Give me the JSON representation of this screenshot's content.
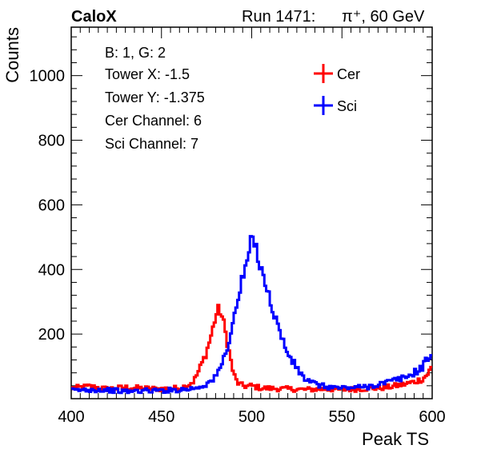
{
  "header": {
    "experiment": "CaloX",
    "run_label": "Run 1471:",
    "beam": "π⁺, 60 GeV"
  },
  "info_box": [
    "B: 1, G: 2",
    "Tower X: -1.5",
    "Tower Y: -1.375",
    "Cer Channel: 6",
    "Sci Channel: 7"
  ],
  "chart_data": {
    "type": "line",
    "xlabel": "Peak TS",
    "ylabel": "Counts",
    "xlim": [
      400,
      600
    ],
    "ylim": [
      0,
      1150
    ],
    "x_ticks": [
      400,
      450,
      500,
      550,
      600
    ],
    "y_ticks": [
      200,
      400,
      600,
      800,
      1000
    ],
    "grid": false,
    "legend_position": "top-right",
    "series": [
      {
        "name": "Cer",
        "color": "#ff0000",
        "points": [
          [
            400,
            32
          ],
          [
            410,
            38
          ],
          [
            420,
            30
          ],
          [
            430,
            35
          ],
          [
            440,
            32
          ],
          [
            450,
            30
          ],
          [
            455,
            32
          ],
          [
            460,
            33
          ],
          [
            464,
            40
          ],
          [
            468,
            55
          ],
          [
            471,
            90
          ],
          [
            474,
            130
          ],
          [
            476,
            165
          ],
          [
            478,
            205
          ],
          [
            480,
            255
          ],
          [
            482,
            280
          ],
          [
            484,
            245
          ],
          [
            486,
            190
          ],
          [
            488,
            130
          ],
          [
            490,
            75
          ],
          [
            492,
            50
          ],
          [
            494,
            42
          ],
          [
            497,
            38
          ],
          [
            500,
            40
          ],
          [
            505,
            33
          ],
          [
            510,
            32
          ],
          [
            520,
            30
          ],
          [
            530,
            28
          ],
          [
            540,
            30
          ],
          [
            550,
            28
          ],
          [
            560,
            30
          ],
          [
            570,
            33
          ],
          [
            575,
            35
          ],
          [
            580,
            40
          ],
          [
            585,
            45
          ],
          [
            590,
            52
          ],
          [
            595,
            62
          ],
          [
            598,
            80
          ],
          [
            600,
            100
          ]
        ]
      },
      {
        "name": "Sci",
        "color": "#0000ff",
        "points": [
          [
            400,
            25
          ],
          [
            410,
            28
          ],
          [
            420,
            27
          ],
          [
            430,
            22
          ],
          [
            440,
            25
          ],
          [
            450,
            25
          ],
          [
            460,
            28
          ],
          [
            465,
            30
          ],
          [
            470,
            35
          ],
          [
            475,
            45
          ],
          [
            480,
            65
          ],
          [
            484,
            115
          ],
          [
            487,
            170
          ],
          [
            490,
            240
          ],
          [
            492,
            300
          ],
          [
            494,
            350
          ],
          [
            496,
            390
          ],
          [
            498,
            440
          ],
          [
            500,
            495
          ],
          [
            502,
            475
          ],
          [
            504,
            430
          ],
          [
            506,
            395
          ],
          [
            508,
            350
          ],
          [
            510,
            305
          ],
          [
            512,
            270
          ],
          [
            514,
            240
          ],
          [
            516,
            195
          ],
          [
            518,
            170
          ],
          [
            520,
            140
          ],
          [
            522,
            120
          ],
          [
            525,
            95
          ],
          [
            528,
            70
          ],
          [
            531,
            55
          ],
          [
            535,
            45
          ],
          [
            540,
            38
          ],
          [
            545,
            35
          ],
          [
            550,
            33
          ],
          [
            555,
            35
          ],
          [
            560,
            35
          ],
          [
            565,
            38
          ],
          [
            570,
            45
          ],
          [
            575,
            50
          ],
          [
            580,
            58
          ],
          [
            585,
            65
          ],
          [
            590,
            80
          ],
          [
            595,
            100
          ],
          [
            598,
            130
          ],
          [
            600,
            145
          ]
        ]
      }
    ]
  }
}
